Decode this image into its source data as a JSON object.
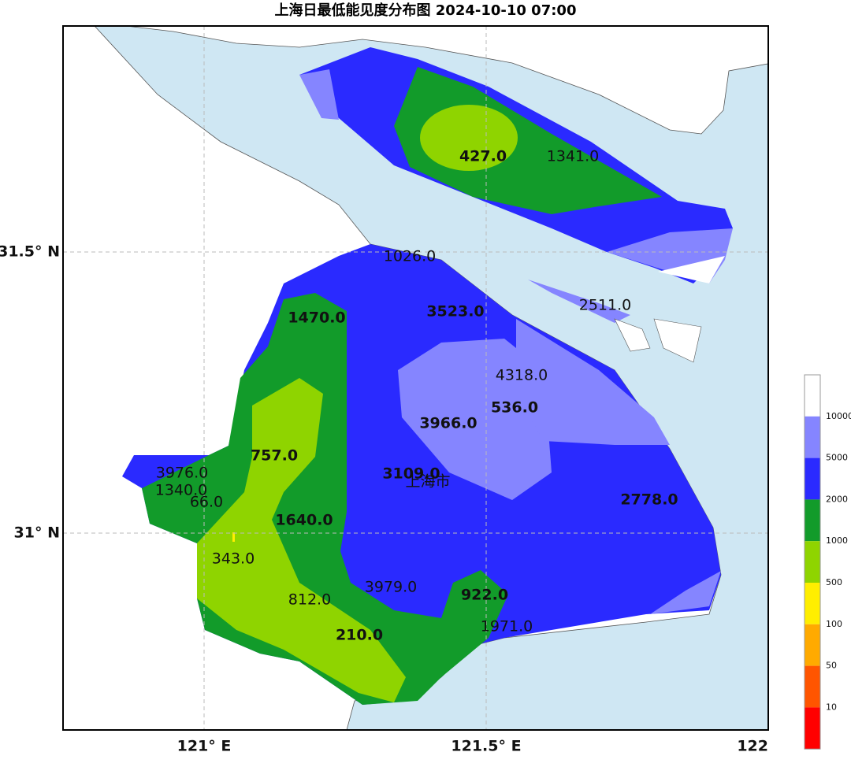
{
  "title": "上海日最低能见度分布图 2024-10-10 07:00",
  "x_axis_labels": [
    "121° E",
    "121.5° E",
    "122"
  ],
  "y_axis_labels": [
    "31.5° N",
    "31° N"
  ],
  "city_label": "上海市",
  "stations": [
    "427.0",
    "1341.0",
    "1026.0",
    "2511.0",
    "3523.0",
    "1470.0",
    "4318.0",
    "536.0",
    "3966.0",
    "757.0",
    "3976.0",
    "3109.0",
    "1340.0",
    "66.0",
    "2778.0",
    "1640.0",
    "343.0",
    "3979.0",
    "812.0",
    "922.0",
    "1971.0",
    "210.0"
  ],
  "legend_labels": [
    "10000",
    "5000",
    "2000",
    "1000",
    "500",
    "100",
    "50",
    "10"
  ]
}
